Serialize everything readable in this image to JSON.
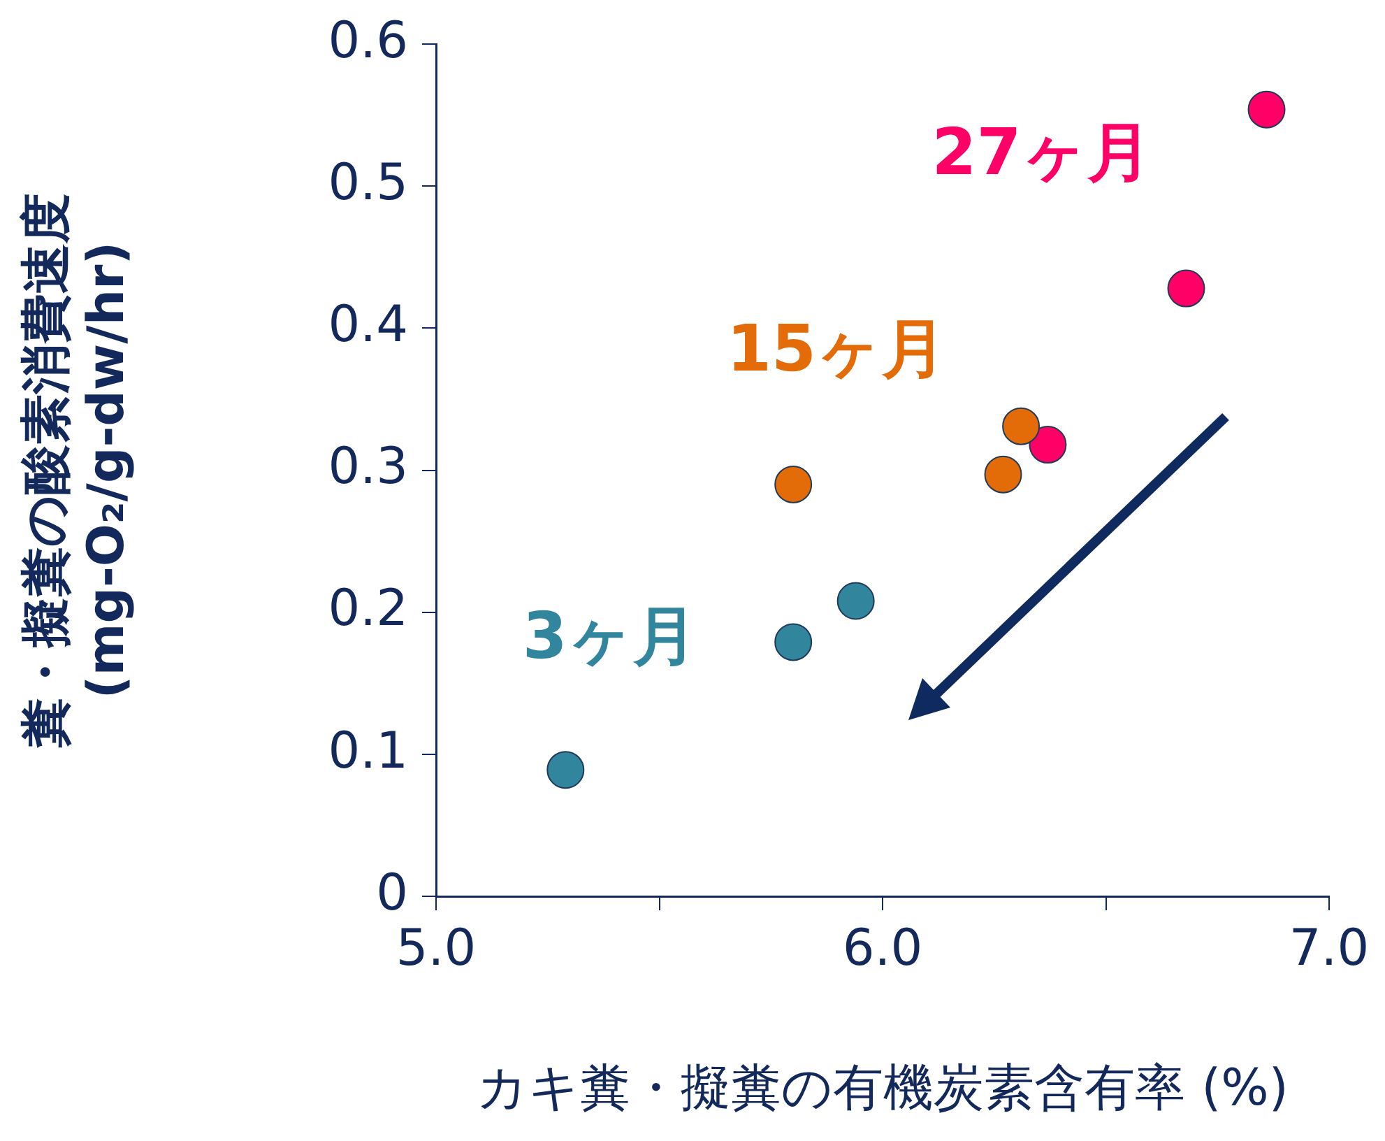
{
  "chart_data": {
    "type": "scatter",
    "xlabel": "カキ糞・擬糞の有機炭素含有率 (%)",
    "ylabel": "糞・擬糞の酸素消費速度\n(mg-O₂/g-dw/hr)",
    "xlim": [
      5,
      7
    ],
    "xticks": [
      {
        "value": 5,
        "label": "5.0"
      },
      {
        "value": 5.5,
        "label": null
      },
      {
        "value": 6,
        "label": "6.0"
      },
      {
        "value": 6.5,
        "label": null
      },
      {
        "value": 7,
        "label": "7.0"
      }
    ],
    "ylim": [
      0,
      0.6
    ],
    "yticks": [
      0,
      0.1,
      0.2,
      0.3,
      0.4,
      0.5,
      0.6
    ],
    "grid": false,
    "legend": false,
    "marker": "circle",
    "series": [
      {
        "name": "3ヶ月",
        "color": "#31859c",
        "x": [
          5.29,
          5.8,
          5.94
        ],
        "values": [
          0.089,
          0.179,
          0.208
        ]
      },
      {
        "name": "15ヶ月",
        "color": "#e36c09",
        "x": [
          5.8,
          6.27,
          6.31
        ],
        "values": [
          0.29,
          0.297,
          0.331
        ]
      },
      {
        "name": "27ヶ月",
        "color": "#ff0066",
        "x": [
          6.37,
          6.68,
          6.86
        ],
        "values": [
          0.318,
          0.428,
          0.554
        ]
      }
    ]
  }
}
